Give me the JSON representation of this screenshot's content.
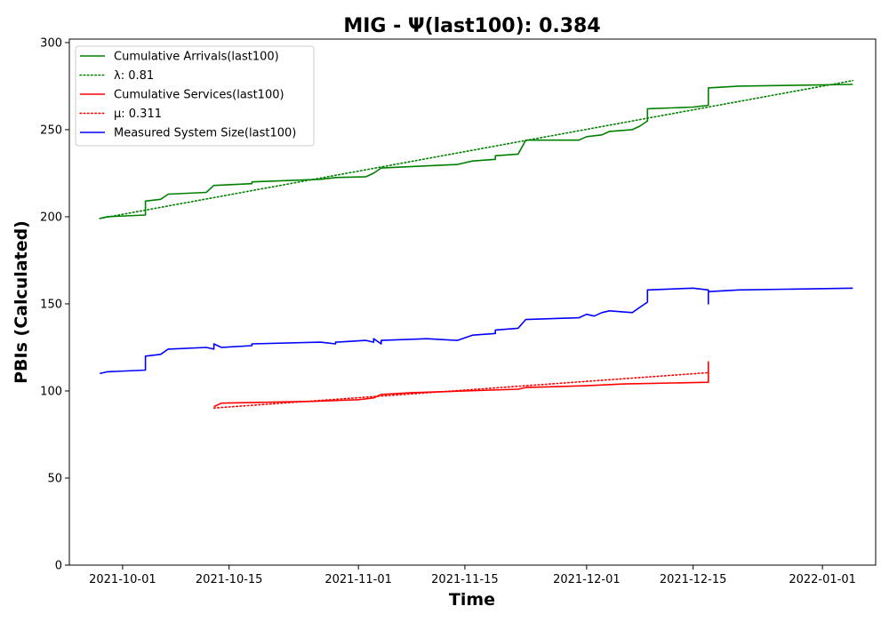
{
  "chart_data": {
    "type": "line",
    "title": "MIG -  Ψ(last100): 0.384",
    "xlabel": "Time",
    "ylabel": "PBIs (Calculated)",
    "ylim": [
      0,
      302
    ],
    "xlim": [
      "2021-09-24",
      "2022-01-08"
    ],
    "x_ticks": [
      "2021-10-01",
      "2021-10-15",
      "2021-11-01",
      "2021-11-15",
      "2021-12-01",
      "2021-12-15",
      "2022-01-01"
    ],
    "y_ticks": [
      0,
      50,
      100,
      150,
      200,
      250,
      300
    ],
    "grid": false,
    "legend_position": "top-left",
    "series": [
      {
        "name": "Cumulative Arrivals(last100)",
        "color": "#008000",
        "style": "solid",
        "points": [
          [
            "2021-09-28",
            199
          ],
          [
            "2021-09-29",
            200
          ],
          [
            "2021-10-04",
            201
          ],
          [
            "2021-10-04",
            209
          ],
          [
            "2021-10-06",
            210
          ],
          [
            "2021-10-07",
            213
          ],
          [
            "2021-10-12",
            214
          ],
          [
            "2021-10-13",
            218
          ],
          [
            "2021-10-18",
            219
          ],
          [
            "2021-10-18",
            220
          ],
          [
            "2021-10-27",
            221.5
          ],
          [
            "2021-10-29",
            222.5
          ],
          [
            "2021-11-02",
            223
          ],
          [
            "2021-11-03",
            225
          ],
          [
            "2021-11-04",
            228
          ],
          [
            "2021-11-14",
            230
          ],
          [
            "2021-11-16",
            232
          ],
          [
            "2021-11-19",
            233
          ],
          [
            "2021-11-19",
            235
          ],
          [
            "2021-11-22",
            236
          ],
          [
            "2021-11-23",
            244
          ],
          [
            "2021-11-30",
            244
          ],
          [
            "2021-12-01",
            246
          ],
          [
            "2021-12-03",
            247
          ],
          [
            "2021-12-04",
            249
          ],
          [
            "2021-12-07",
            250
          ],
          [
            "2021-12-08",
            252
          ],
          [
            "2021-12-09",
            255
          ],
          [
            "2021-12-09",
            262
          ],
          [
            "2021-12-15",
            263
          ],
          [
            "2021-12-17",
            264
          ],
          [
            "2021-12-17",
            274
          ],
          [
            "2021-12-21",
            275
          ],
          [
            "2022-01-05",
            276
          ]
        ]
      },
      {
        "name": "λ: 0.81",
        "color": "#008000",
        "style": "dotted",
        "points": [
          [
            "2021-09-28",
            199
          ],
          [
            "2022-01-05",
            278.2
          ]
        ]
      },
      {
        "name": "Cumulative Services(last100)",
        "color": "#ff0000",
        "style": "solid",
        "points": [
          [
            "2021-10-13",
            91
          ],
          [
            "2021-10-14",
            93
          ],
          [
            "2021-10-26",
            94
          ],
          [
            "2021-11-01",
            95
          ],
          [
            "2021-11-03",
            96
          ],
          [
            "2021-11-04",
            98
          ],
          [
            "2021-11-08",
            99
          ],
          [
            "2021-11-22",
            101
          ],
          [
            "2021-11-23",
            102
          ],
          [
            "2021-12-01",
            103
          ],
          [
            "2021-12-06",
            104
          ],
          [
            "2021-12-17",
            105
          ],
          [
            "2021-12-17",
            117
          ]
        ]
      },
      {
        "name": "μ: 0.311",
        "color": "#ff0000",
        "style": "dotted",
        "points": [
          [
            "2021-10-13",
            90.2
          ],
          [
            "2021-12-17",
            110.5
          ]
        ]
      },
      {
        "name": "Measured System Size(last100)",
        "color": "#0000ff",
        "style": "solid",
        "points": [
          [
            "2021-09-28",
            110
          ],
          [
            "2021-09-29",
            111
          ],
          [
            "2021-10-04",
            112
          ],
          [
            "2021-10-04",
            120
          ],
          [
            "2021-10-06",
            121
          ],
          [
            "2021-10-07",
            124
          ],
          [
            "2021-10-12",
            125
          ],
          [
            "2021-10-13",
            124
          ],
          [
            "2021-10-13",
            127
          ],
          [
            "2021-10-14",
            125
          ],
          [
            "2021-10-18",
            126
          ],
          [
            "2021-10-18",
            127
          ],
          [
            "2021-10-27",
            128
          ],
          [
            "2021-10-29",
            127
          ],
          [
            "2021-10-29",
            128
          ],
          [
            "2021-11-02",
            129
          ],
          [
            "2021-11-03",
            128
          ],
          [
            "2021-11-03",
            130
          ],
          [
            "2021-11-04",
            127
          ],
          [
            "2021-11-04",
            129
          ],
          [
            "2021-11-10",
            130
          ],
          [
            "2021-11-14",
            129
          ],
          [
            "2021-11-16",
            132
          ],
          [
            "2021-11-19",
            133
          ],
          [
            "2021-11-19",
            135
          ],
          [
            "2021-11-22",
            136
          ],
          [
            "2021-11-23",
            141
          ],
          [
            "2021-11-30",
            142
          ],
          [
            "2021-12-01",
            144
          ],
          [
            "2021-12-02",
            143
          ],
          [
            "2021-12-03",
            145
          ],
          [
            "2021-12-04",
            146
          ],
          [
            "2021-12-07",
            145
          ],
          [
            "2021-12-08",
            148
          ],
          [
            "2021-12-09",
            151
          ],
          [
            "2021-12-09",
            158
          ],
          [
            "2021-12-15",
            159
          ],
          [
            "2021-12-17",
            158
          ],
          [
            "2021-12-17",
            150
          ],
          [
            "2021-12-17",
            157
          ],
          [
            "2021-12-21",
            158
          ],
          [
            "2022-01-05",
            159
          ]
        ]
      }
    ]
  }
}
